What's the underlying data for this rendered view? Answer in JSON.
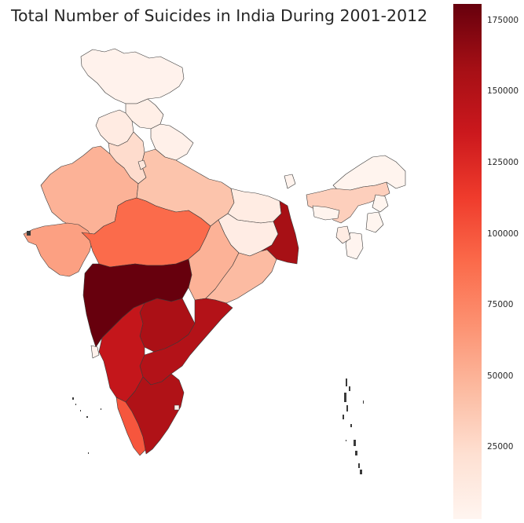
{
  "title": "Total Number of Suicides in India During 2001-2012",
  "colorbar": {
    "colormap": "Reds",
    "min": 0,
    "max": 181000,
    "ticks": [
      {
        "value": 25000,
        "label": "25000"
      },
      {
        "value": 50000,
        "label": "50000"
      },
      {
        "value": 75000,
        "label": "75000"
      },
      {
        "value": 100000,
        "label": "100000"
      },
      {
        "value": 125000,
        "label": "125000"
      },
      {
        "value": 150000,
        "label": "150000"
      },
      {
        "value": 175000,
        "label": "175000"
      }
    ],
    "stops": [
      "#fff5f0",
      "#fee0d2",
      "#fcbba1",
      "#fc9272",
      "#fb6a4a",
      "#ef3b2c",
      "#cb181d",
      "#a50f15",
      "#67000d"
    ]
  },
  "regions": [
    {
      "name": "Jammu & Kashmir",
      "value": 2900
    },
    {
      "name": "Himachal Pradesh",
      "value": 6900
    },
    {
      "name": "Punjab",
      "value": 10500
    },
    {
      "name": "Uttarakhand",
      "value": 5400
    },
    {
      "name": "Haryana",
      "value": 25000
    },
    {
      "name": "Rajasthan",
      "value": 50000
    },
    {
      "name": "Uttar Pradesh",
      "value": 40000
    },
    {
      "name": "Bihar",
      "value": 9800
    },
    {
      "name": "Jharkhand",
      "value": 9300
    },
    {
      "name": "West Bengal",
      "value": 157000
    },
    {
      "name": "Sikkim",
      "value": 2200
    },
    {
      "name": "Arunachal Pradesh",
      "value": 1400
    },
    {
      "name": "Assam",
      "value": 33000
    },
    {
      "name": "Nagaland",
      "value": 500
    },
    {
      "name": "Manipur",
      "value": 400
    },
    {
      "name": "Mizoram",
      "value": 800
    },
    {
      "name": "Tripura",
      "value": 10000
    },
    {
      "name": "Meghalaya",
      "value": 1600
    },
    {
      "name": "Gujarat",
      "value": 60000
    },
    {
      "name": "Madhya Pradesh",
      "value": 90000
    },
    {
      "name": "Chhattisgarh",
      "value": 50000
    },
    {
      "name": "Odisha",
      "value": 45000
    },
    {
      "name": "Maharashtra",
      "value": 181000
    },
    {
      "name": "Telangana",
      "value": 155000
    },
    {
      "name": "Andhra Pradesh",
      "value": 150000
    },
    {
      "name": "Karnataka",
      "value": 140000
    },
    {
      "name": "Goa",
      "value": 2900
    },
    {
      "name": "Kerala",
      "value": 100000
    },
    {
      "name": "Tamil Nadu",
      "value": 152000
    },
    {
      "name": "Puducherry",
      "value": 6200
    },
    {
      "name": "Delhi",
      "value": 15000
    }
  ]
}
